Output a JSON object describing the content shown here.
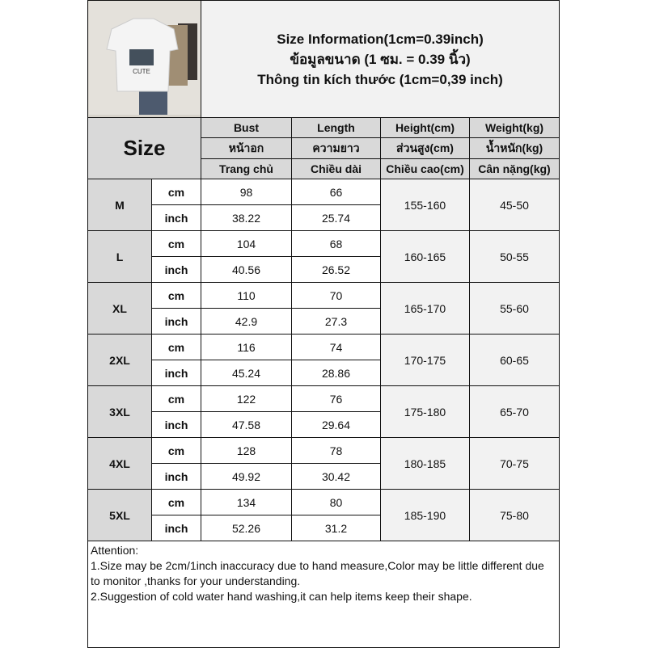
{
  "title": [
    "Size Information(1cm=0.39inch)",
    "ข้อมูลขนาด (1 ซม. = 0.39 นิ้ว)",
    "Thông tin kích thước (1cm=0,39 inch)"
  ],
  "photo_text": "CUTE",
  "size_label": "Size",
  "headers": [
    [
      "Bust",
      "หน้าอก",
      "Trang chủ"
    ],
    [
      "Length",
      "ความยาว",
      "Chiều dài"
    ],
    [
      "Height(cm)",
      "ส่วนสูง(cm)",
      "Chiều cao(cm)"
    ],
    [
      "Weight(kg)",
      "น้ำหนัก(kg)",
      "Cân nặng(kg)"
    ]
  ],
  "units": {
    "cm": "cm",
    "inch": "inch"
  },
  "rows": [
    {
      "size": "M",
      "bust_cm": "98",
      "length_cm": "66",
      "bust_in": "38.22",
      "length_in": "25.74",
      "height": "155-160",
      "weight": "45-50"
    },
    {
      "size": "L",
      "bust_cm": "104",
      "length_cm": "68",
      "bust_in": "40.56",
      "length_in": "26.52",
      "height": "160-165",
      "weight": "50-55"
    },
    {
      "size": "XL",
      "bust_cm": "110",
      "length_cm": "70",
      "bust_in": "42.9",
      "length_in": "27.3",
      "height": "165-170",
      "weight": "55-60"
    },
    {
      "size": "2XL",
      "bust_cm": "116",
      "length_cm": "74",
      "bust_in": "45.24",
      "length_in": "28.86",
      "height": "170-175",
      "weight": "60-65"
    },
    {
      "size": "3XL",
      "bust_cm": "122",
      "length_cm": "76",
      "bust_in": "47.58",
      "length_in": "29.64",
      "height": "175-180",
      "weight": "65-70"
    },
    {
      "size": "4XL",
      "bust_cm": "128",
      "length_cm": "78",
      "bust_in": "49.92",
      "length_in": "30.42",
      "height": "180-185",
      "weight": "70-75"
    },
    {
      "size": "5XL",
      "bust_cm": "134",
      "length_cm": "80",
      "bust_in": "52.26",
      "length_in": "31.2",
      "height": "185-190",
      "weight": "75-80"
    }
  ],
  "attention": [
    "Attention:",
    "1.Size may be 2cm/1inch inaccuracy due to hand measure,Color may be little different due to monitor ,thanks for your understanding.",
    "2.Suggestion of cold water hand washing,it can help items keep their shape."
  ]
}
